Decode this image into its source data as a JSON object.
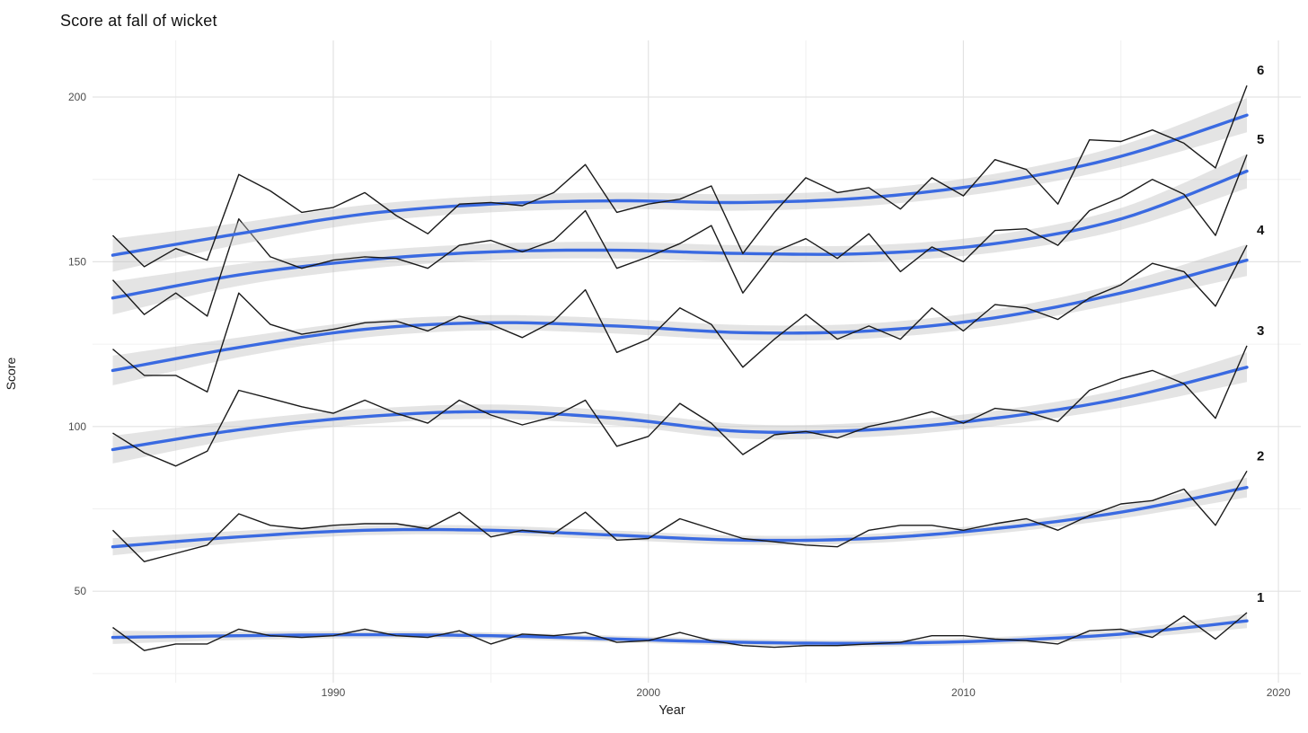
{
  "title": "Score at fall of wicket",
  "chart_data": {
    "type": "line",
    "title": "Score at fall of wicket",
    "xlabel": "Year",
    "ylabel": "Score",
    "x_ticks": [
      1990,
      2000,
      2010,
      2020
    ],
    "x_minor_ticks": [
      1985,
      1995,
      2005,
      2015
    ],
    "y_ticks": [
      50,
      100,
      150,
      200
    ],
    "y_minor_ticks": [
      25,
      75,
      125,
      175
    ],
    "xlim": [
      1982.4,
      2020.7
    ],
    "ylim": [
      21,
      217
    ],
    "grid": true,
    "legend_position": "series-end-labels",
    "years": [
      1983,
      1984,
      1985,
      1986,
      1987,
      1988,
      1989,
      1990,
      1991,
      1992,
      1993,
      1994,
      1995,
      1996,
      1997,
      1998,
      1999,
      2000,
      2001,
      2002,
      2003,
      2004,
      2005,
      2006,
      2007,
      2008,
      2009,
      2010,
      2011,
      2012,
      2013,
      2014,
      2015,
      2016,
      2017,
      2018,
      2019
    ],
    "series": [
      {
        "name": "1",
        "values": [
          39,
          32,
          34,
          34,
          38.5,
          36.5,
          36,
          36.5,
          38.5,
          36.5,
          36,
          38,
          34,
          37,
          36.5,
          37.5,
          34.5,
          35,
          37.5,
          35,
          33.5,
          33,
          33.5,
          33.5,
          34,
          34.5,
          36.5,
          36.5,
          35.5,
          35,
          34,
          38,
          38.5,
          36,
          42.5,
          35.5,
          43.5
        ],
        "smooth": {
          "x": [
            1983,
            1987,
            1991,
            1995,
            1999,
            2003,
            2007,
            2011,
            2015,
            2019
          ],
          "y": [
            36,
            36.5,
            36.8,
            36.5,
            35.5,
            34.5,
            34.2,
            35,
            37,
            41
          ],
          "half_width": [
            2,
            1.3,
            1.1,
            1,
            1,
            1,
            1,
            1.1,
            1.4,
            2.2
          ]
        }
      },
      {
        "name": "2",
        "values": [
          68.5,
          59,
          61.5,
          64,
          73.5,
          70,
          69,
          70,
          70.5,
          70.5,
          69,
          74,
          66.5,
          68.5,
          67.5,
          74,
          65.5,
          66,
          72,
          69,
          66,
          65,
          64,
          63.5,
          68.5,
          70,
          70,
          68.5,
          70.5,
          72,
          68.5,
          73,
          76.5,
          77.5,
          81,
          70,
          86.5
        ],
        "smooth": {
          "x": [
            1983,
            1987,
            1991,
            1995,
            1999,
            2003,
            2007,
            2011,
            2015,
            2019
          ],
          "y": [
            63.5,
            66.5,
            68.5,
            68.5,
            67,
            65.5,
            66,
            69,
            74,
            81.5
          ],
          "half_width": [
            2.6,
            1.8,
            1.5,
            1.4,
            1.4,
            1.4,
            1.4,
            1.5,
            1.9,
            3
          ]
        }
      },
      {
        "name": "3",
        "values": [
          98,
          92,
          88,
          92.5,
          111,
          108.5,
          106,
          104,
          108,
          104,
          101,
          108,
          103.5,
          100.5,
          103,
          108,
          94,
          97,
          107,
          101,
          91.5,
          97.5,
          98.5,
          96.5,
          100,
          102,
          104.5,
          101,
          105.5,
          104.5,
          101.5,
          111,
          114.5,
          117,
          113,
          102.5,
          124.5
        ],
        "smooth": {
          "x": [
            1983,
            1987,
            1991,
            1995,
            1999,
            2003,
            2007,
            2011,
            2015,
            2019
          ],
          "y": [
            93,
            99,
            103,
            104.5,
            102.5,
            98.5,
            99,
            102.5,
            108.5,
            118
          ],
          "half_width": [
            4.2,
            2.8,
            2.3,
            2.2,
            2.2,
            2.2,
            2.2,
            2.3,
            2.8,
            4.5
          ]
        }
      },
      {
        "name": "4",
        "values": [
          123.5,
          115.5,
          115.5,
          110.5,
          140.5,
          131,
          128,
          129.5,
          131.5,
          132,
          129,
          133.5,
          131,
          127,
          132,
          141.5,
          122.5,
          126.5,
          136,
          131,
          118,
          126.5,
          134,
          126.5,
          130.5,
          126.5,
          136,
          129,
          137,
          136,
          132.5,
          139,
          143,
          149.5,
          147,
          136.5,
          155
        ],
        "smooth": {
          "x": [
            1983,
            1987,
            1991,
            1995,
            1999,
            2003,
            2007,
            2011,
            2015,
            2019
          ],
          "y": [
            117,
            124,
            129.5,
            131.5,
            130.5,
            128.5,
            129,
            133,
            140.5,
            150.5
          ],
          "half_width": [
            4.5,
            3,
            2.5,
            2.3,
            2.3,
            2.3,
            2.3,
            2.5,
            3,
            4.8
          ]
        }
      },
      {
        "name": "5",
        "values": [
          144.5,
          134,
          140.5,
          133.5,
          163,
          151.5,
          148,
          150.5,
          151.5,
          151,
          148,
          155,
          156.5,
          153,
          156.5,
          165.5,
          148,
          151.5,
          155.5,
          161,
          140.5,
          153,
          157,
          151,
          158.5,
          147,
          154.5,
          150,
          159.5,
          160,
          155,
          165.5,
          169.5,
          175,
          170.5,
          158,
          182.5
        ],
        "smooth": {
          "x": [
            1983,
            1987,
            1991,
            1995,
            1999,
            2003,
            2007,
            2011,
            2015,
            2019
          ],
          "y": [
            139,
            146,
            150.5,
            153,
            153.5,
            152.5,
            152.5,
            155.5,
            163,
            177.5
          ],
          "half_width": [
            5,
            3.3,
            2.7,
            2.5,
            2.5,
            2.5,
            2.5,
            2.7,
            3.3,
            5.2
          ]
        }
      },
      {
        "name": "6",
        "values": [
          158,
          148.5,
          154,
          150.5,
          176.5,
          171.5,
          165,
          166.5,
          171,
          164,
          158.5,
          167.5,
          168,
          167,
          171,
          179.5,
          165,
          167.5,
          169,
          173,
          152.5,
          165,
          175.5,
          171,
          172.5,
          166,
          175.5,
          170,
          181,
          178,
          167.5,
          187,
          186.5,
          190,
          186,
          178.5,
          203.5
        ],
        "smooth": {
          "x": [
            1983,
            1987,
            1991,
            1995,
            1999,
            2003,
            2007,
            2011,
            2015,
            2019
          ],
          "y": [
            152,
            158.5,
            164.5,
            167.5,
            168.5,
            168,
            169.5,
            174,
            182,
            194.5
          ],
          "half_width": [
            5,
            3.3,
            2.7,
            2.5,
            2.5,
            2.5,
            2.5,
            2.7,
            3.3,
            5.2
          ]
        }
      }
    ],
    "colors": {
      "data_line": "#1a1a1a",
      "smooth_line": "#3a6ae1",
      "ribbon": "#bfbfbf",
      "grid_major": "#e3e3e3",
      "grid_minor": "#f0f0f0",
      "tick_label": "#4d4d4d",
      "series_label": "#111111",
      "background": "#ffffff"
    }
  }
}
